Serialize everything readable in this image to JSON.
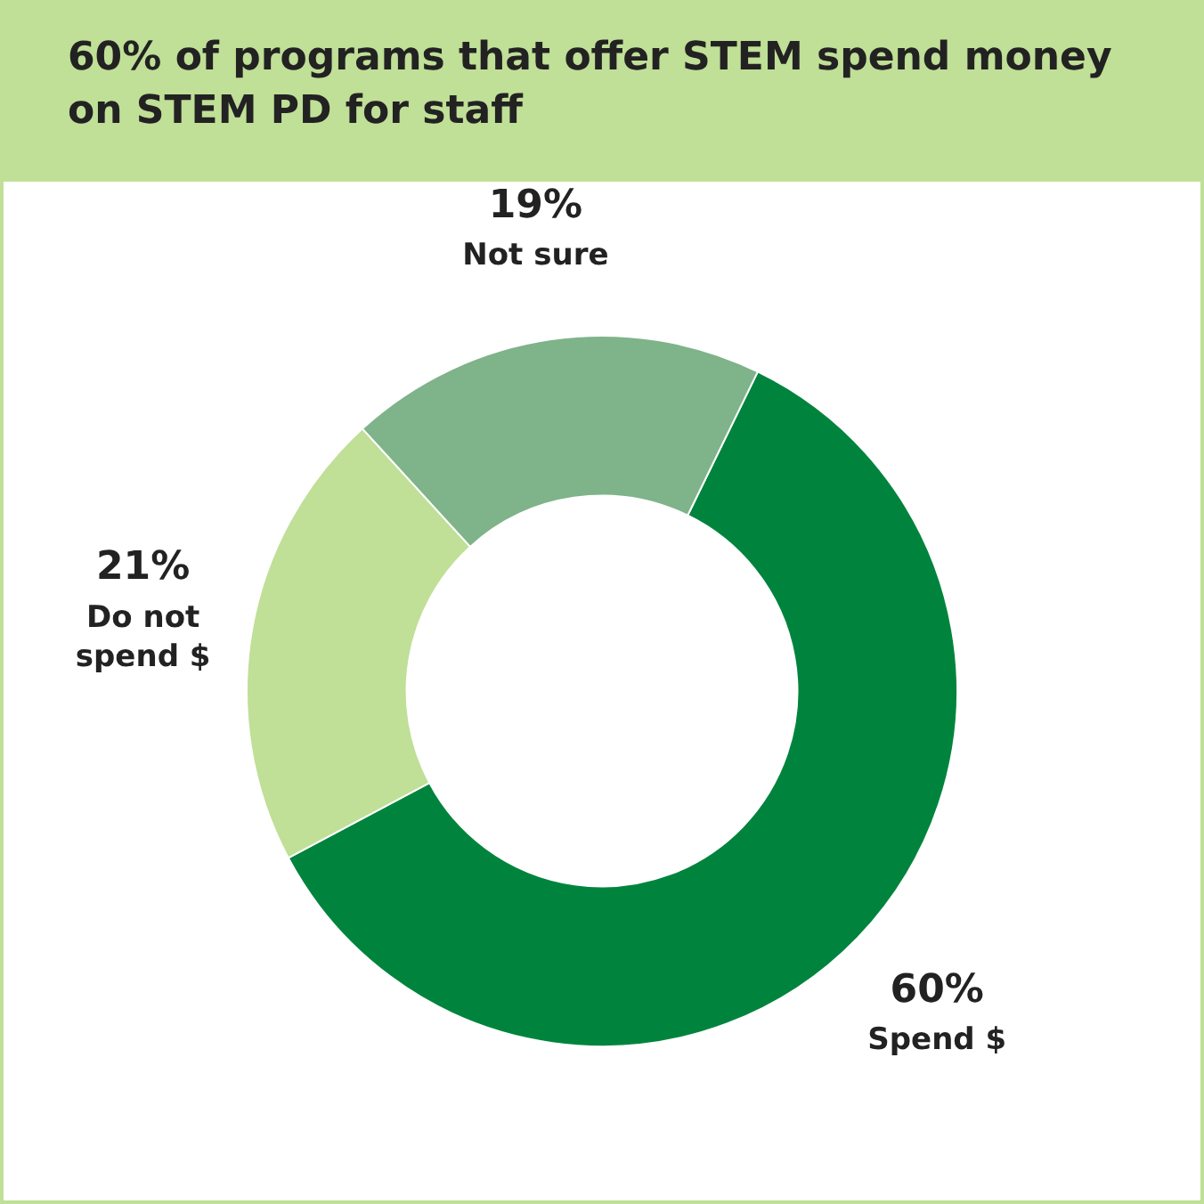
{
  "chart_data": {
    "type": "donut",
    "title": "60% of programs that offer STEM spend money on STEM PD for staff",
    "categories": [
      "Spend $",
      "Do not spend $",
      "Not sure"
    ],
    "values": [
      60,
      21,
      19
    ],
    "colors": [
      "#00843d",
      "#c0df97",
      "#7fb38a"
    ],
    "value_labels": [
      "60%",
      "21%",
      "19%"
    ],
    "legend": false
  }
}
